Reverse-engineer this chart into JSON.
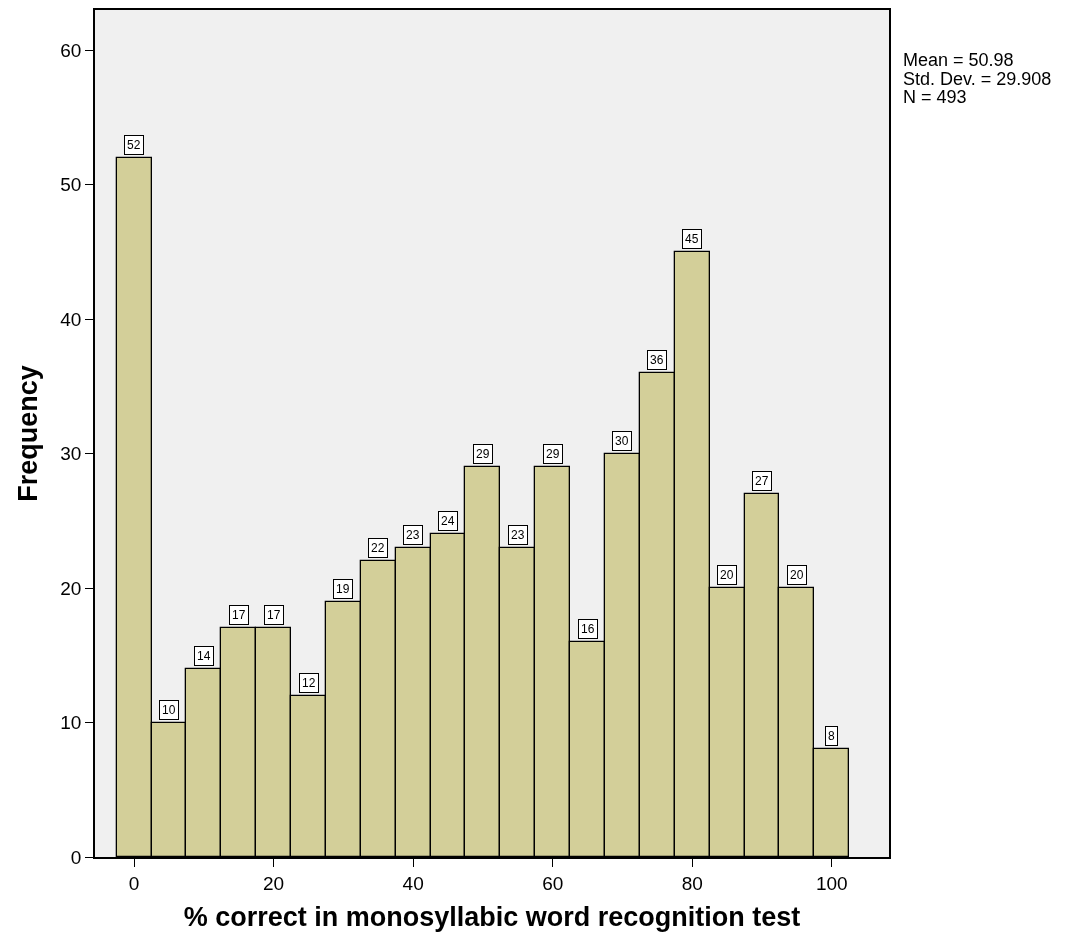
{
  "chart_data": {
    "type": "histogram",
    "xlabel": "% correct in monosyllabic word recognition test",
    "ylabel": "Frequency",
    "bins": [
      -2.5,
      2.5,
      7.5,
      12.5,
      17.5,
      22.5,
      27.5,
      32.5,
      37.5,
      42.5,
      47.5,
      52.5,
      57.5,
      62.5,
      67.5,
      72.5,
      77.5,
      82.5,
      87.5,
      92.5,
      97.5,
      102.5
    ],
    "values": [
      52,
      10,
      14,
      17,
      17,
      12,
      19,
      22,
      23,
      24,
      29,
      23,
      29,
      16,
      30,
      36,
      45,
      20,
      27,
      20,
      8
    ],
    "color": "#d3cf99",
    "data_labels": true,
    "xlim": [
      -5.6,
      108.2
    ],
    "ylim": [
      0,
      63
    ],
    "xticks": [
      0,
      20,
      40,
      60,
      80,
      100
    ],
    "yticks": [
      0,
      10,
      20,
      30,
      40,
      50,
      60
    ],
    "annotations": [
      "Mean = 50.98",
      "Std. Dev. = 29.908",
      "N = 493"
    ]
  }
}
